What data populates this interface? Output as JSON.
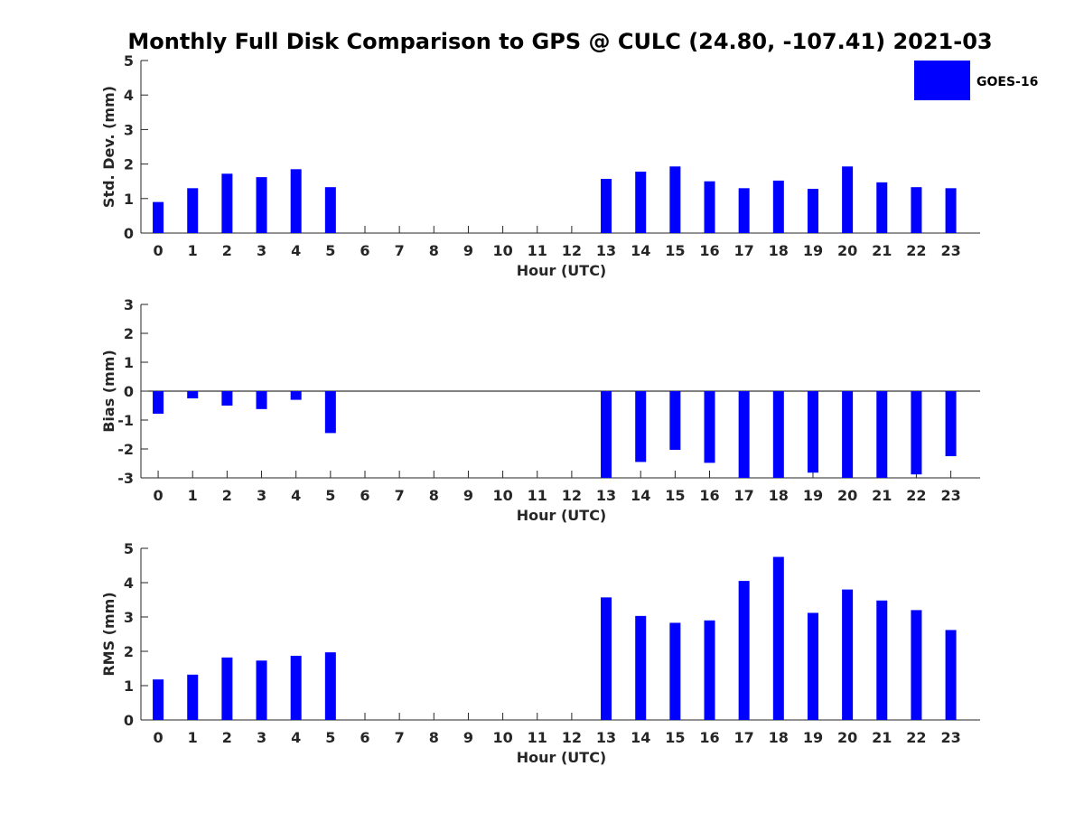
{
  "chart_data": {
    "title": "Monthly Full Disk Comparison to GPS @ CULC (24.80, -107.41) 2021-03",
    "type": "bar",
    "colors": {
      "bar": "#0000ff",
      "axis": "#262626"
    },
    "legend": {
      "entries": [
        "GOES-16"
      ],
      "placement": "top-right"
    },
    "categories": [
      "0",
      "1",
      "2",
      "3",
      "4",
      "5",
      "6",
      "7",
      "8",
      "9",
      "10",
      "11",
      "12",
      "13",
      "14",
      "15",
      "16",
      "17",
      "18",
      "19",
      "20",
      "21",
      "22",
      "23"
    ],
    "panels": [
      {
        "id": "stddev",
        "ylabel": "Std. Dev. (mm)",
        "xlabel": "Hour (UTC)",
        "ylim": [
          0,
          5
        ],
        "yticks": [
          0,
          1,
          2,
          3,
          4,
          5
        ],
        "grid": false,
        "series": [
          {
            "name": "GOES-16",
            "values": [
              0.9,
              1.3,
              1.72,
              1.62,
              1.85,
              1.33,
              null,
              null,
              null,
              null,
              null,
              null,
              null,
              1.57,
              1.78,
              1.93,
              1.5,
              1.3,
              1.52,
              1.28,
              1.93,
              1.47,
              1.33,
              1.3
            ]
          }
        ]
      },
      {
        "id": "bias",
        "ylabel": "Bias (mm)",
        "xlabel": "Hour (UTC)",
        "ylim": [
          -3,
          3
        ],
        "yticks": [
          -3,
          -2,
          -1,
          0,
          1,
          2,
          3
        ],
        "grid": false,
        "zero_line": true,
        "series": [
          {
            "name": "GOES-16",
            "values": [
              -0.78,
              -0.25,
              -0.5,
              -0.62,
              -0.3,
              -1.45,
              null,
              null,
              null,
              null,
              null,
              null,
              null,
              -3.0,
              -2.45,
              -2.03,
              -2.48,
              -3.0,
              -3.0,
              -2.82,
              -3.0,
              -3.0,
              -2.88,
              -2.25
            ]
          }
        ]
      },
      {
        "id": "rms",
        "ylabel": "RMS (mm)",
        "xlabel": "Hour (UTC)",
        "ylim": [
          0,
          5
        ],
        "yticks": [
          0,
          1,
          2,
          3,
          4,
          5
        ],
        "grid": false,
        "series": [
          {
            "name": "GOES-16",
            "values": [
              1.18,
              1.32,
              1.82,
              1.73,
              1.87,
              1.97,
              null,
              null,
              null,
              null,
              null,
              null,
              null,
              3.57,
              3.03,
              2.83,
              2.9,
              4.05,
              4.75,
              3.12,
              3.8,
              3.48,
              3.2,
              2.62
            ]
          }
        ]
      }
    ]
  }
}
